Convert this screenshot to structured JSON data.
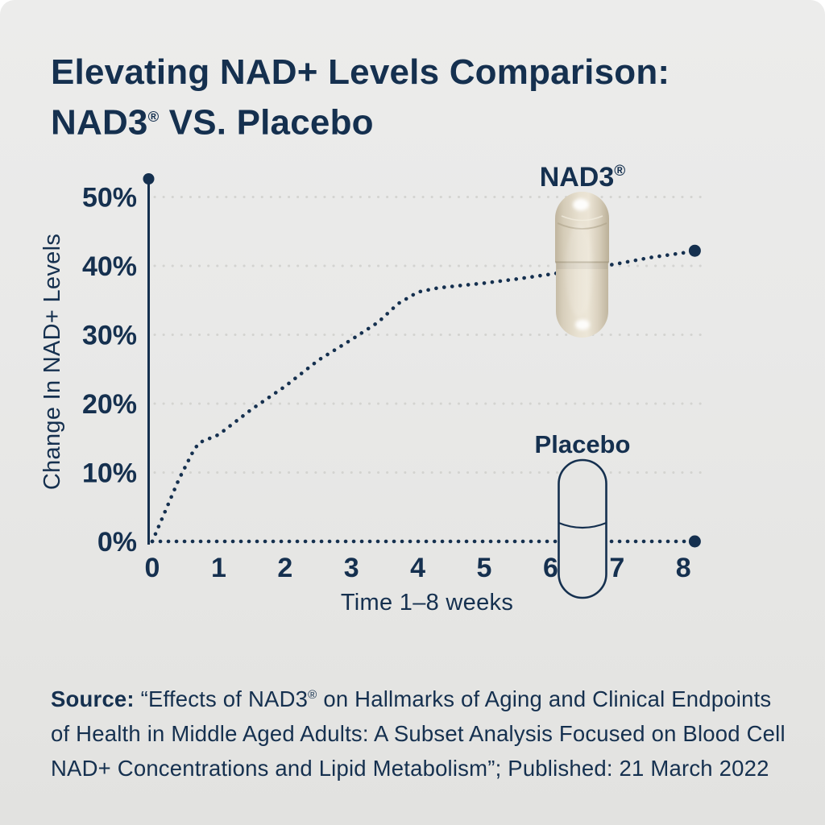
{
  "colors": {
    "navy": "#15304f",
    "canvas_top": "#ececeb",
    "canvas_bottom": "#e2e2e0",
    "grid_dot": "#d3d3d0",
    "capsule_cream": "#e3dbca",
    "page_bg": "#ffffff"
  },
  "title": {
    "line1": "Elevating NAD+ Levels Comparison:",
    "line2_name": "NAD3",
    "reg_mark": "®",
    "line2_rest": " VS. Placebo"
  },
  "chart_data": {
    "type": "line",
    "title": "",
    "xlabel": "Time 1–8 weeks",
    "ylabel": "Change In NAD+ Levels",
    "x_ticks": [
      "0",
      "1",
      "2",
      "3",
      "4",
      "5",
      "6",
      "7",
      "8"
    ],
    "y_ticks": [
      "0%",
      "10%",
      "20%",
      "30%",
      "40%",
      "50%"
    ],
    "xlim": [
      0,
      8.2
    ],
    "ylim": [
      0,
      53
    ],
    "grid": "horizontal dotted lines at 10%–50%",
    "line_style": "dotted",
    "legend_position": "annotations above capsule icons",
    "series": [
      {
        "name": "NAD3®",
        "label": "NAD3",
        "reg_mark": "®",
        "marker": "cream capsule photo",
        "x": [
          0,
          0.2,
          0.4,
          0.6,
          0.7,
          1,
          1.5,
          2,
          2.5,
          3,
          3.4,
          3.7,
          4,
          4.3,
          4.7,
          5,
          5.5,
          6,
          6.5,
          7,
          7.5,
          8,
          8.17
        ],
        "values": [
          0,
          4.5,
          9,
          12.8,
          14.3,
          15.5,
          19.2,
          22.5,
          26.3,
          29.3,
          31.8,
          34.5,
          36.2,
          36.8,
          37.2,
          37.5,
          38.1,
          38.8,
          39.5,
          40.3,
          41.2,
          41.9,
          42.2
        ],
        "weekly_values": [
          0,
          15.5,
          22.5,
          29.3,
          36.2,
          37.5,
          38.8,
          40.3,
          41.9
        ],
        "end_value_pct": 42.2
      },
      {
        "name": "Placebo",
        "label": "Placebo",
        "marker": "outlined capsule drawing",
        "x": [
          0,
          8.17
        ],
        "values": [
          0,
          0
        ],
        "weekly_values": [
          0,
          0,
          0,
          0,
          0,
          0,
          0,
          0,
          0
        ],
        "end_value_pct": 0
      }
    ]
  },
  "source": {
    "prefix": "Source:",
    "quote_pre": " “Effects of NAD3",
    "reg_mark": "®",
    "line1_rest": " on Hallmarks of Aging and Clinical Endpoints",
    "line2": "of Health in Middle Aged Adults: A Subset Analysis Focused on Blood Cell",
    "line3": "NAD+ Concentrations and Lipid Metabolism”; Published: 21 March 2022"
  }
}
